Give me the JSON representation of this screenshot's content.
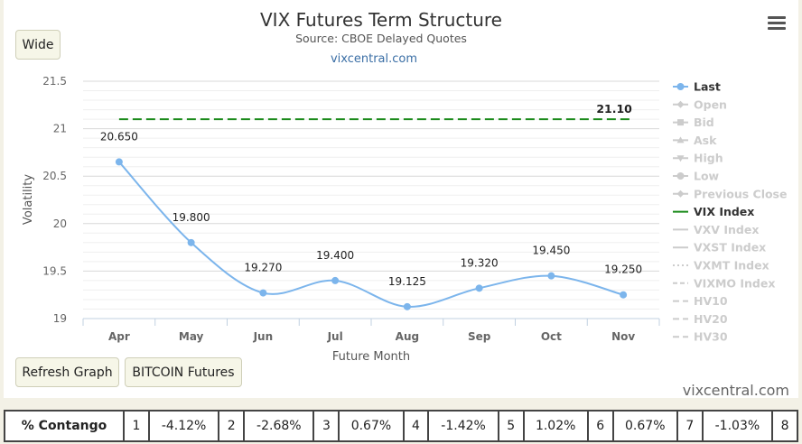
{
  "header": {
    "title": "VIX Futures Term Structure",
    "subtitle": "Source: CBOE Delayed Quotes",
    "link": "vixcentral.com"
  },
  "buttons": {
    "wide": "Wide",
    "refresh": "Refresh Graph",
    "bitcoin": "BITCOIN Futures"
  },
  "brand": "vixcentral.com",
  "colors": {
    "last": "#7cb5ec",
    "vix_index": "#1a8a1a",
    "disabled": "#cccccc",
    "grid": "#e6e6e6"
  },
  "chart_data": {
    "type": "line",
    "title": "VIX Futures Term Structure",
    "xlabel": "Future Month",
    "ylabel": "Volatility",
    "ylim": [
      19,
      21.5
    ],
    "yticks": [
      "19",
      "19.5",
      "20",
      "20.5",
      "21",
      "21.5"
    ],
    "categories": [
      "Apr",
      "May",
      "Jun",
      "Jul",
      "Aug",
      "Sep",
      "Oct",
      "Nov"
    ],
    "series": [
      {
        "name": "Last",
        "values": [
          20.65,
          19.8,
          19.27,
          19.4,
          19.125,
          19.32,
          19.45,
          19.25
        ],
        "labels": [
          "20.650",
          "19.800",
          "19.270",
          "19.400",
          "19.125",
          "19.320",
          "19.450",
          "19.250"
        ]
      },
      {
        "name": "VIX Index",
        "values": [
          21.1,
          21.1,
          21.1,
          21.1,
          21.1,
          21.1,
          21.1,
          21.1
        ],
        "end_label": "21.10"
      }
    ],
    "grid": true,
    "legend_position": "right",
    "legend": [
      {
        "name": "Last",
        "enabled": true,
        "symbol": "circle"
      },
      {
        "name": "Open",
        "enabled": false,
        "symbol": "diamond"
      },
      {
        "name": "Bid",
        "enabled": false,
        "symbol": "square"
      },
      {
        "name": "Ask",
        "enabled": false,
        "symbol": "triangle"
      },
      {
        "name": "High",
        "enabled": false,
        "symbol": "triangle-down"
      },
      {
        "name": "Low",
        "enabled": false,
        "symbol": "circle"
      },
      {
        "name": "Previous Close",
        "enabled": false,
        "symbol": "diamond"
      },
      {
        "name": "VIX Index",
        "enabled": true,
        "symbol": "dash"
      },
      {
        "name": "VXV Index",
        "enabled": false,
        "symbol": "line"
      },
      {
        "name": "VXST Index",
        "enabled": false,
        "symbol": "line"
      },
      {
        "name": "VXMT Index",
        "enabled": false,
        "symbol": "dotted"
      },
      {
        "name": "VIXMO Index",
        "enabled": false,
        "symbol": "dashed"
      },
      {
        "name": "HV10",
        "enabled": false,
        "symbol": "longdash"
      },
      {
        "name": "HV20",
        "enabled": false,
        "symbol": "longdash"
      },
      {
        "name": "HV30",
        "enabled": false,
        "symbol": "longdash"
      }
    ]
  },
  "contango": {
    "label": "% Contango",
    "cells": [
      {
        "n": "1",
        "v": "-4.12%"
      },
      {
        "n": "2",
        "v": "-2.68%"
      },
      {
        "n": "3",
        "v": "0.67%"
      },
      {
        "n": "4",
        "v": "-1.42%"
      },
      {
        "n": "5",
        "v": "1.02%"
      },
      {
        "n": "6",
        "v": "0.67%"
      },
      {
        "n": "7",
        "v": "-1.03%"
      }
    ],
    "trailing": "8"
  }
}
